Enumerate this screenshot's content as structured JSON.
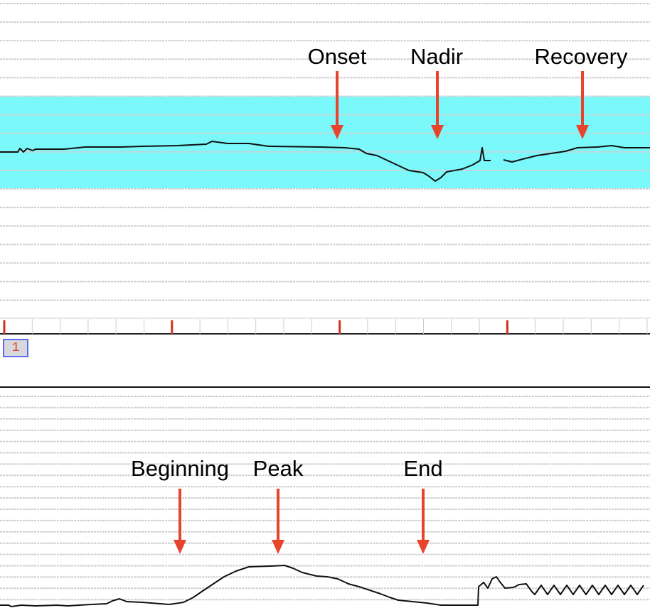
{
  "annotations_top": [
    {
      "label": "Onset"
    },
    {
      "label": "Nadir"
    },
    {
      "label": "Recovery"
    }
  ],
  "annotations_bottom": [
    {
      "label": "Beginning"
    },
    {
      "label": "Peak"
    },
    {
      "label": "End"
    }
  ],
  "event_marker": "1",
  "colors": {
    "normal_band": "#7af8fa",
    "trace": "#111111",
    "arrow": "#e8432c",
    "grid": "#cfcfd4",
    "time_tick_major": "#d0301c"
  }
}
